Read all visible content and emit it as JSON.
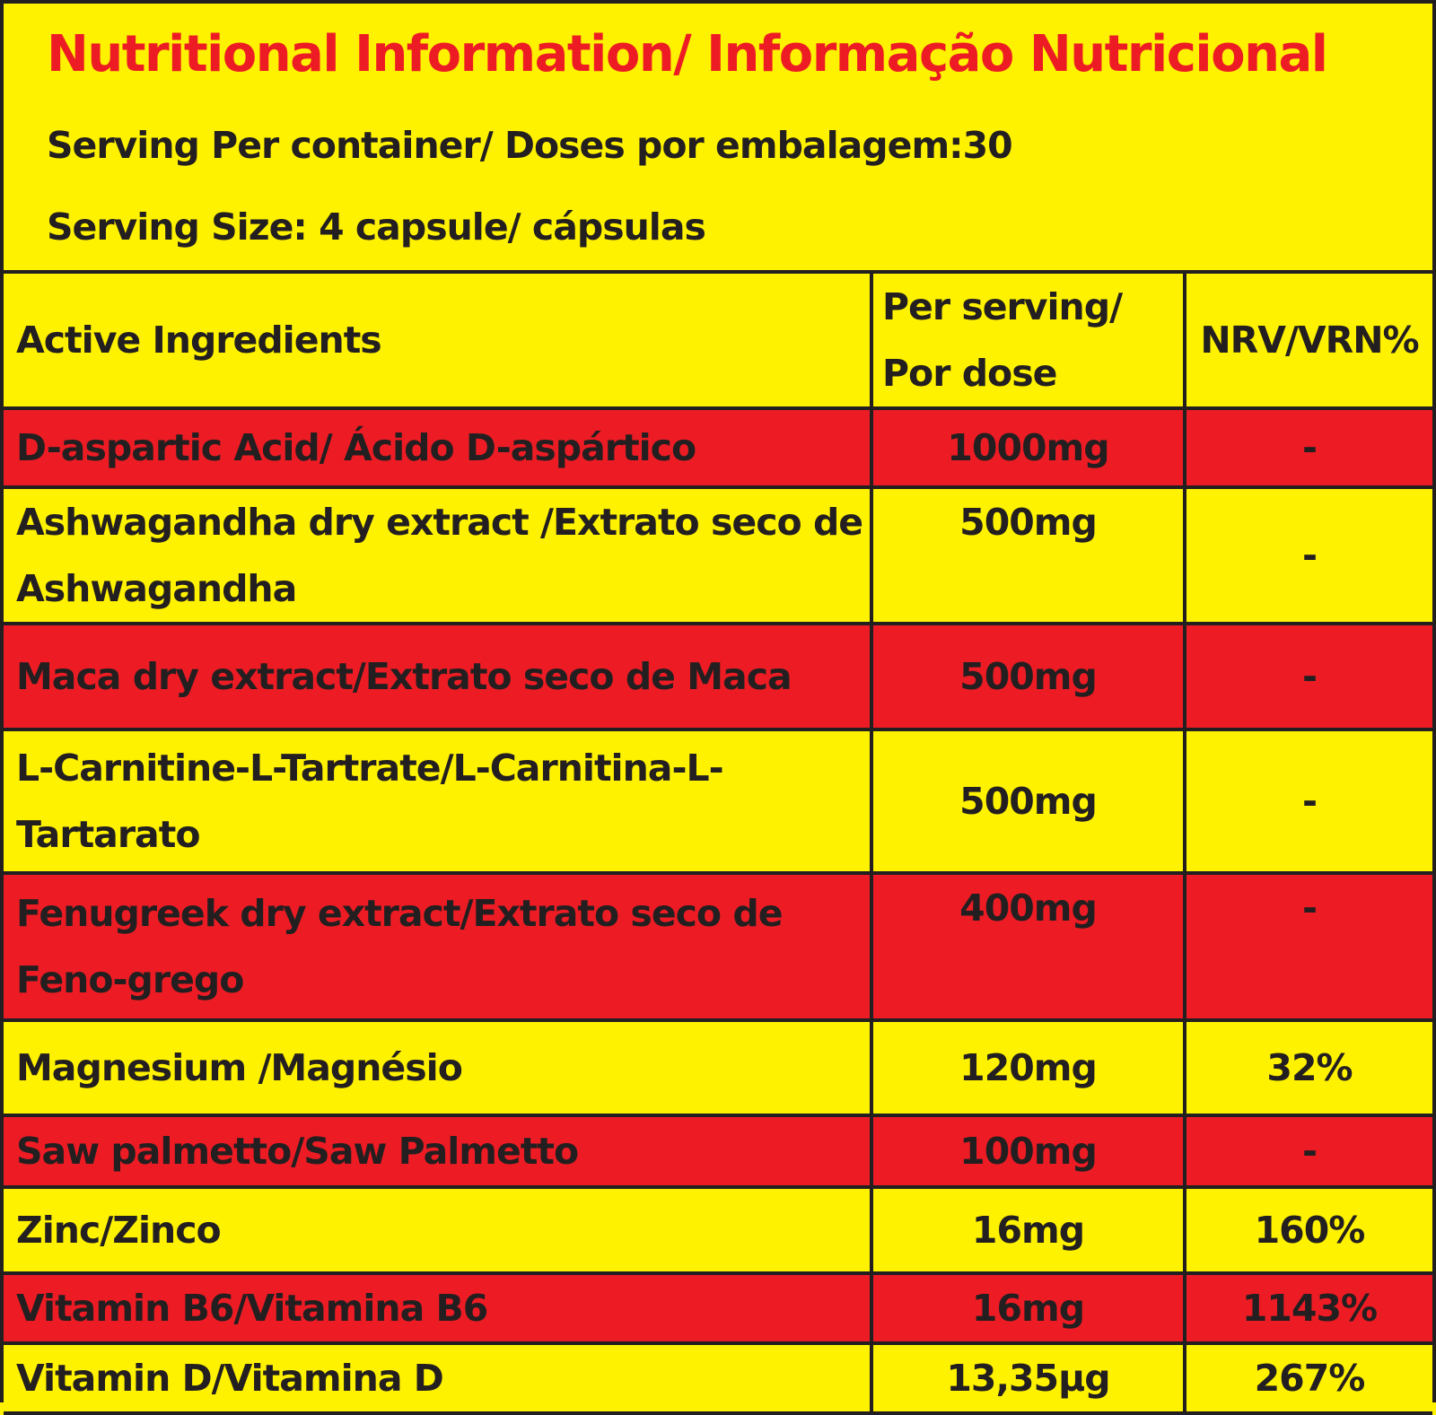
{
  "header": {
    "title": "Nutritional Information/ Informação Nutricional",
    "servings_per_container": "Serving Per container/ Doses por embalagem:30",
    "serving_size": "Serving Size: 4 capsule/ cápsulas"
  },
  "table": {
    "columns": [
      "Active Ingredients",
      "Per serving/ Por dose",
      "NRV/VRN%"
    ],
    "col_per_serving_line1": "Per serving/",
    "col_per_serving_line2": "Por dose",
    "rows": [
      {
        "ingredient": "D-aspartic Acid/ Ácido D-aspártico",
        "per_serving": "1000mg",
        "nrv": "-"
      },
      {
        "ingredient": "Ashwagandha dry extract /Extrato seco de Ashwagandha",
        "per_serving": "500mg",
        "nrv": "-"
      },
      {
        "ingredient": "Maca dry extract/Extrato seco de Maca",
        "per_serving": "500mg",
        "nrv": "-"
      },
      {
        "ingredient": "L-Carnitine-L-Tartrate/L-Carnitina-L-Tartarato",
        "per_serving": "500mg",
        "nrv": "-"
      },
      {
        "ingredient": "Fenugreek dry extract/Extrato seco de Feno-grego",
        "per_serving": "400mg",
        "nrv": "-"
      },
      {
        "ingredient": "Magnesium /Magnésio",
        "per_serving": "120mg",
        "nrv": "32%"
      },
      {
        "ingredient": "Saw palmetto/Saw Palmetto",
        "per_serving": "100mg",
        "nrv": "-"
      },
      {
        "ingredient": "Zinc/Zinco",
        "per_serving": "16mg",
        "nrv": "160%"
      },
      {
        "ingredient": "Vitamin B6/Vitamina B6",
        "per_serving": "16mg",
        "nrv": "1143%"
      },
      {
        "ingredient": "Vitamin D/Vitamina D",
        "per_serving": "13,35µg",
        "nrv": "267%"
      }
    ]
  },
  "colors": {
    "background_yellow": "#fff200",
    "row_red": "#ed1c24",
    "title_red": "#ed1c24",
    "text": "#231f20"
  }
}
